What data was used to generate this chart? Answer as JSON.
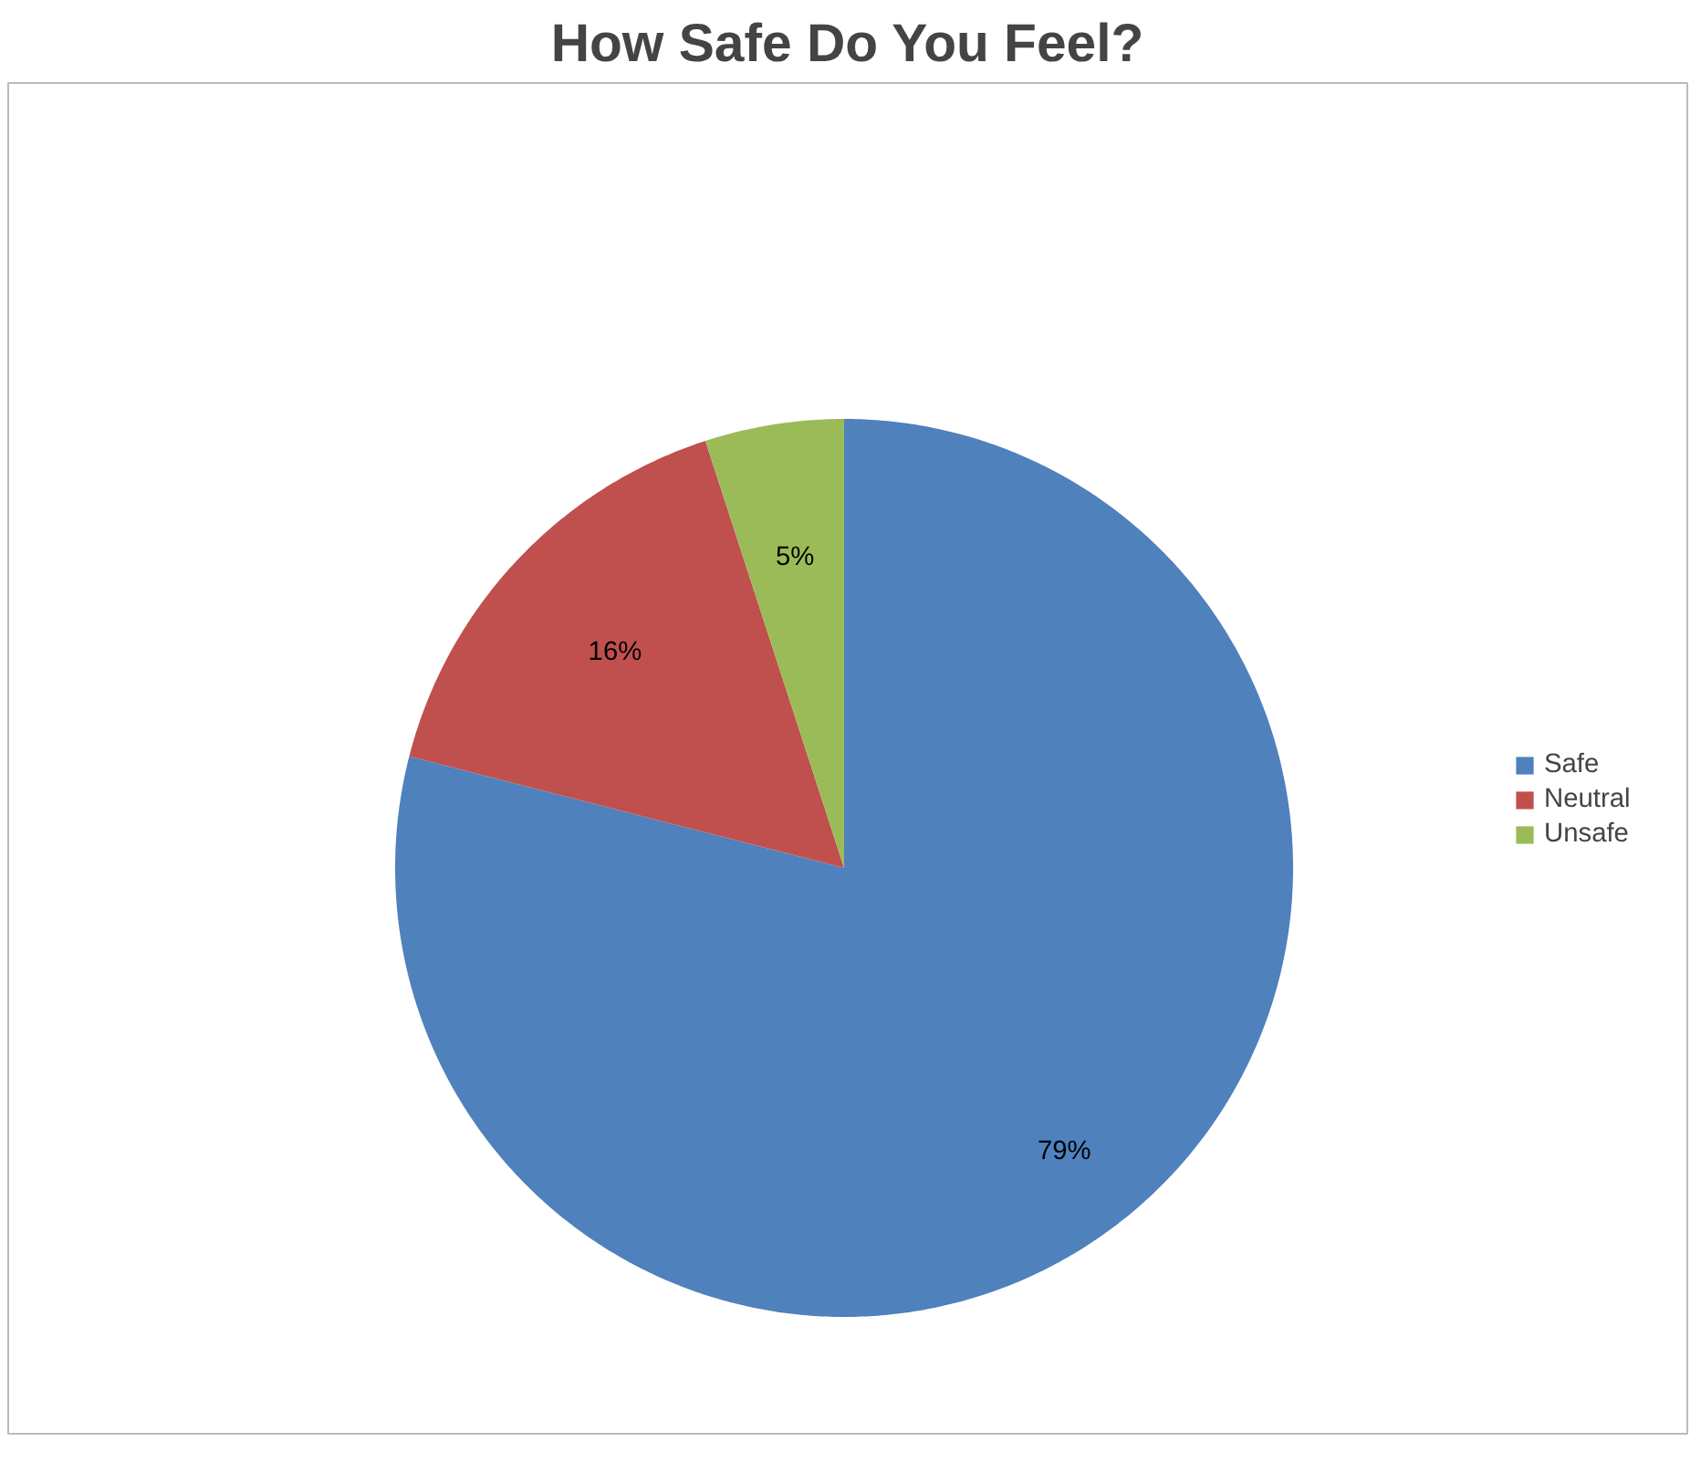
{
  "chart_data": {
    "type": "pie",
    "title": "How Safe Do You Feel?",
    "categories": [
      "Safe",
      "Neutral",
      "Unsafe"
    ],
    "values": [
      79,
      16,
      5
    ],
    "colors": [
      "#4f81bd",
      "#c0504d",
      "#9bbb59"
    ],
    "value_labels": [
      "79%",
      "16%",
      "5%"
    ],
    "legend": "right"
  }
}
